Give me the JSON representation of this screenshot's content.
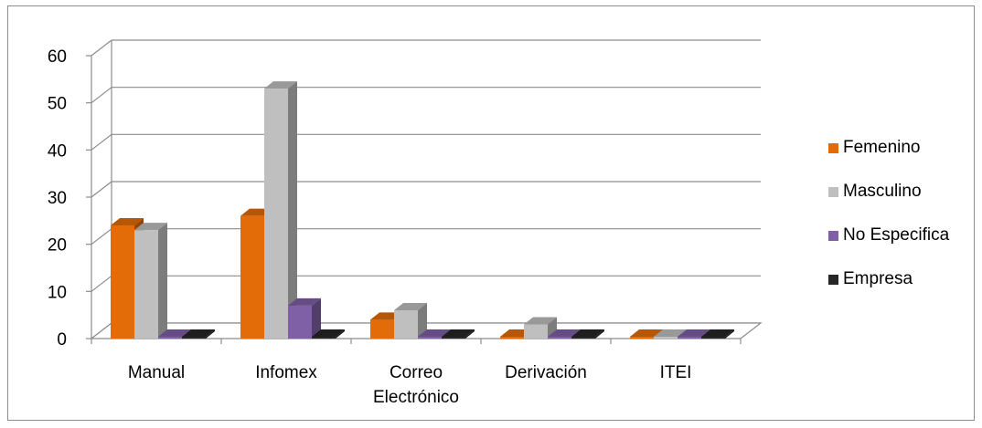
{
  "chart_data": {
    "type": "bar",
    "title": "",
    "xlabel": "",
    "ylabel": "",
    "ylim": [
      0,
      60
    ],
    "yticks": [
      0,
      10,
      20,
      30,
      40,
      50,
      60
    ],
    "grid": true,
    "legend_position": "right",
    "categories": [
      "Manual",
      "Infomex",
      "Correo Electrónico",
      "Derivación",
      "ITEI"
    ],
    "category_lines": [
      [
        "Manual"
      ],
      [
        "Infomex"
      ],
      [
        "Correo",
        "Electrónico"
      ],
      [
        "Derivación"
      ],
      [
        "ITEI"
      ]
    ],
    "series": [
      {
        "name": "Femenino",
        "color": "#e36c09",
        "values": [
          24,
          26,
          4,
          0,
          0
        ]
      },
      {
        "name": "Masculino",
        "color": "#bfbfbf",
        "values": [
          23,
          53,
          6,
          3,
          0
        ]
      },
      {
        "name": "No Especifica",
        "color": "#7f5fa5",
        "values": [
          0,
          7,
          0,
          0,
          0
        ]
      },
      {
        "name": "Empresa",
        "color": "#262626",
        "values": [
          0,
          0,
          0,
          0,
          0
        ]
      }
    ]
  }
}
